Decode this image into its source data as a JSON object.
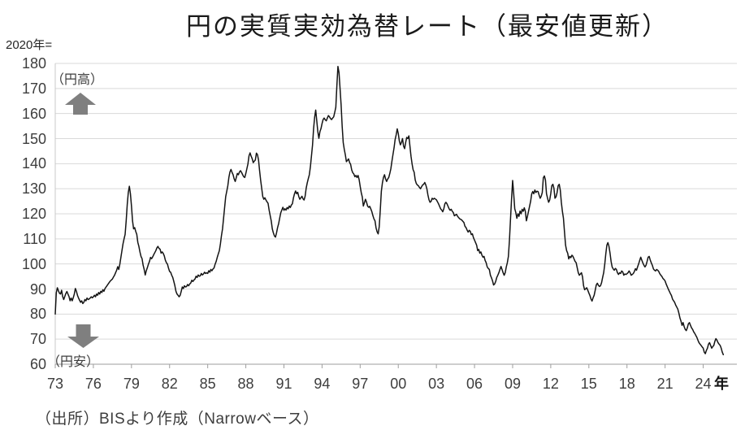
{
  "header": {
    "base_index_label": "2020年=",
    "title": "円の実質実効為替レート（最安値更新）"
  },
  "annotations": {
    "yen_strong": "（円高）",
    "yen_weak": "（円安）"
  },
  "source_note": "（出所）BISより作成（Narrowベース）",
  "y_axis": {
    "min": 60,
    "max": 180,
    "step": 10,
    "tick_values": [
      180,
      170,
      160,
      150,
      140,
      130,
      120,
      110,
      100,
      90,
      80,
      70,
      60
    ]
  },
  "x_axis": {
    "unit_label": "年",
    "tick_years": [
      1973,
      1976,
      1979,
      1982,
      1985,
      1988,
      1991,
      1994,
      1997,
      2000,
      2003,
      2006,
      2009,
      2012,
      2015,
      2018,
      2021,
      2024
    ],
    "tick_labels": [
      "73",
      "76",
      "79",
      "82",
      "85",
      "88",
      "91",
      "94",
      "97",
      "00",
      "03",
      "06",
      "09",
      "12",
      "15",
      "18",
      "21",
      "24"
    ]
  },
  "colors": {
    "line": "#141414",
    "gridline": "#d9d9d9",
    "left_axis": "#c9c9c9",
    "bottom_axis": "#9e9e9e",
    "arrow": "#7f7f7f"
  },
  "chart_data": {
    "type": "line",
    "title": "円の実質実効為替レート（最安値更新）",
    "base_index": "2020年=100",
    "xlabel": "年",
    "ylabel": "",
    "ylim": [
      60,
      180
    ],
    "x_axis_range": [
      1973,
      2026.65
    ],
    "grid": "horizontal-only",
    "legend": "none",
    "annotations": [
      "（円高）= up",
      "（円安）= down"
    ],
    "series": [
      {
        "name": "円の実質実効為替レート（BIS Narrowベース）",
        "frequency": "monthly",
        "start_year": 1973,
        "values": [
          80.0,
          88.5,
          90.5,
          89.3,
          88.3,
          88.0,
          89.5,
          87.0,
          85.8,
          87.0,
          88.2,
          89.0,
          88.0,
          87.0,
          85.3,
          86.4,
          85.3,
          86.5,
          88.0,
          90.2,
          89.1,
          87.5,
          86.4,
          85.5,
          84.7,
          85.3,
          84.2,
          84.7,
          85.8,
          85.3,
          86.4,
          85.8,
          86.0,
          86.4,
          86.9,
          86.5,
          86.9,
          87.5,
          86.9,
          88.0,
          87.5,
          88.6,
          88.0,
          89.1,
          88.6,
          89.7,
          89.1,
          90.2,
          90.8,
          91.4,
          92.0,
          92.6,
          93.2,
          93.6,
          94.0,
          94.8,
          95.5,
          96.5,
          97.5,
          98.9,
          97.8,
          99.9,
          102.6,
          105.3,
          108.0,
          110.0,
          111.8,
          117.2,
          123.7,
          128.5,
          131.0,
          128.0,
          123.1,
          117.2,
          114.0,
          114.5,
          113.0,
          111.8,
          108.6,
          107.0,
          104.8,
          103.0,
          102.1,
          99.5,
          97.8,
          95.6,
          97.3,
          98.5,
          99.9,
          101.0,
          102.6,
          102.1,
          102.8,
          103.7,
          104.5,
          105.3,
          106.4,
          107.0,
          106.2,
          105.9,
          104.3,
          104.8,
          104.2,
          103.2,
          101.5,
          100.5,
          99.9,
          98.3,
          97.0,
          96.7,
          95.5,
          94.6,
          93.0,
          91.3,
          89.1,
          88.0,
          87.5,
          86.9,
          87.5,
          89.1,
          90.8,
          90.2,
          91.3,
          90.8,
          91.0,
          91.8,
          91.3,
          92.0,
          92.4,
          93.5,
          93.0,
          93.6,
          94.0,
          95.1,
          94.6,
          95.6,
          95.1,
          95.3,
          96.2,
          95.6,
          96.0,
          96.7,
          96.2,
          96.5,
          96.2,
          97.3,
          96.7,
          97.8,
          97.3,
          98.0,
          98.4,
          99.9,
          101.0,
          102.6,
          104.0,
          105.3,
          108.0,
          111.3,
          114.0,
          118.3,
          122.6,
          126.9,
          129.0,
          131.2,
          134.5,
          136.7,
          137.7,
          136.5,
          135.6,
          133.9,
          132.9,
          134.5,
          136.1,
          135.6,
          136.7,
          137.2,
          136.5,
          135.6,
          134.8,
          134.5,
          136.1,
          138.0,
          139.9,
          143.1,
          144.3,
          143.0,
          142.0,
          140.4,
          141.0,
          141.5,
          144.2,
          143.6,
          141.5,
          137.2,
          133.4,
          130.2,
          126.9,
          125.8,
          126.4,
          125.5,
          124.8,
          124.2,
          121.5,
          119.3,
          117.2,
          114.0,
          112.4,
          111.2,
          110.7,
          112.4,
          114.5,
          116.1,
          118.3,
          120.4,
          121.5,
          122.6,
          121.4,
          122.0,
          121.5,
          122.5,
          122.0,
          123.1,
          122.5,
          123.5,
          124.0,
          126.4,
          128.0,
          129.1,
          128.0,
          128.6,
          126.9,
          125.8,
          126.4,
          127.0,
          126.0,
          125.5,
          127.0,
          130.2,
          132.3,
          134.0,
          135.6,
          138.8,
          143.1,
          147.4,
          153.9,
          158.5,
          161.4,
          157.1,
          152.8,
          150.1,
          152.8,
          154.0,
          156.0,
          157.6,
          158.2,
          157.5,
          157.1,
          158.2,
          159.2,
          158.7,
          158.0,
          157.6,
          158.2,
          158.7,
          160.5,
          162.5,
          171.1,
          178.8,
          176.4,
          170.0,
          163.5,
          154.9,
          148.4,
          145.7,
          143.5,
          140.8,
          141.3,
          141.9,
          140.5,
          139.7,
          137.5,
          136.4,
          135.9,
          134.8,
          135.3,
          134.5,
          135.3,
          133.7,
          131.0,
          128.5,
          126.7,
          123.1,
          124.4,
          125.8,
          124.7,
          123.1,
          122.6,
          123.0,
          122.0,
          120.9,
          119.3,
          118.0,
          117.2,
          114.4,
          112.8,
          112.0,
          114.9,
          121.5,
          129.0,
          132.3,
          134.5,
          135.6,
          133.9,
          132.9,
          133.9,
          134.5,
          136.1,
          138.0,
          141.0,
          143.7,
          146.3,
          149.6,
          151.5,
          153.9,
          152.0,
          149.0,
          147.5,
          148.5,
          150.0,
          147.0,
          146.0,
          148.5,
          150.5,
          150.0,
          151.1,
          147.0,
          143.0,
          140.0,
          137.6,
          136.6,
          133.5,
          132.1,
          131.5,
          131.2,
          130.5,
          130.0,
          130.8,
          131.5,
          131.8,
          132.5,
          131.5,
          130.0,
          127.5,
          125.6,
          124.6,
          125.0,
          126.2,
          125.8,
          126.2,
          125.9,
          125.6,
          124.8,
          124.0,
          123.0,
          122.0,
          121.5,
          120.8,
          122.0,
          124.0,
          124.6,
          124.0,
          123.0,
          122.0,
          121.4,
          121.8,
          121.0,
          120.5,
          119.2,
          119.5,
          119.8,
          119.0,
          118.5,
          118.0,
          117.8,
          117.5,
          117.0,
          116.5,
          115.0,
          114.5,
          113.5,
          112.7,
          113.4,
          113.0,
          111.7,
          112.0,
          110.5,
          109.5,
          108.5,
          107.5,
          105.3,
          105.8,
          104.3,
          104.8,
          103.5,
          102.7,
          103.0,
          101.4,
          100.5,
          98.8,
          98.2,
          97.8,
          95.5,
          94.5,
          93.3,
          91.6,
          92.0,
          93.0,
          94.6,
          95.5,
          96.5,
          97.8,
          99.0,
          97.8,
          96.5,
          95.5,
          96.5,
          98.8,
          100.5,
          103.0,
          109.5,
          118.0,
          126.0,
          133.3,
          128.0,
          122.0,
          120.5,
          118.2,
          120.0,
          119.0,
          121.1,
          120.0,
          121.8,
          121.0,
          122.4,
          121.0,
          117.2,
          119.0,
          121.0,
          123.0,
          125.0,
          127.9,
          128.9,
          128.0,
          129.5,
          128.5,
          129.0,
          128.9,
          127.5,
          126.2,
          127.0,
          128.5,
          134.4,
          135.1,
          133.5,
          128.0,
          126.2,
          124.6,
          125.5,
          128.0,
          131.2,
          131.8,
          130.2,
          126.2,
          126.8,
          128.5,
          131.2,
          131.8,
          129.5,
          124.6,
          121.0,
          118.2,
          112.7,
          107.5,
          105.3,
          104.3,
          102.0,
          103.0,
          102.5,
          103.5,
          103.0,
          102.0,
          101.0,
          100.5,
          98.5,
          96.5,
          95.5,
          96.0,
          96.5,
          94.9,
          91.3,
          89.7,
          90.1,
          90.5,
          89.5,
          88.4,
          87.4,
          86.0,
          85.2,
          86.5,
          87.5,
          89.5,
          91.6,
          92.3,
          91.5,
          91.0,
          91.3,
          92.5,
          94.6,
          96.5,
          99.8,
          104.0,
          107.5,
          108.5,
          107.0,
          104.3,
          101.0,
          98.8,
          98.0,
          97.5,
          98.2,
          97.8,
          96.5,
          95.8,
          96.5,
          96.2,
          97.2,
          96.8,
          95.5,
          96.0,
          95.8,
          96.1,
          96.5,
          97.2,
          96.5,
          95.5,
          95.8,
          96.2,
          97.0,
          98.1,
          97.5,
          98.8,
          100.0,
          101.4,
          102.7,
          101.5,
          100.4,
          99.5,
          98.8,
          99.5,
          101.0,
          102.7,
          103.0,
          101.5,
          100.4,
          99.4,
          98.0,
          97.5,
          97.2,
          97.8,
          97.5,
          97.0,
          96.1,
          95.5,
          95.0,
          94.2,
          93.8,
          93.2,
          92.0,
          91.0,
          90.0,
          89.1,
          88.2,
          87.4,
          86.0,
          85.3,
          84.7,
          83.6,
          82.8,
          82.0,
          80.4,
          78.5,
          77.2,
          75.5,
          76.6,
          75.0,
          73.9,
          73.4,
          74.5,
          76.1,
          76.6,
          75.5,
          74.5,
          73.9,
          72.9,
          72.3,
          71.5,
          70.7,
          69.6,
          68.6,
          68.0,
          67.5,
          66.9,
          66.4,
          64.8,
          64.2,
          65.5,
          66.4,
          68.0,
          68.6,
          67.5,
          66.4,
          67.0,
          67.5,
          69.1,
          70.2,
          69.6,
          68.6,
          68.0,
          67.5,
          66.4,
          64.8,
          63.8
        ]
      }
    ]
  }
}
